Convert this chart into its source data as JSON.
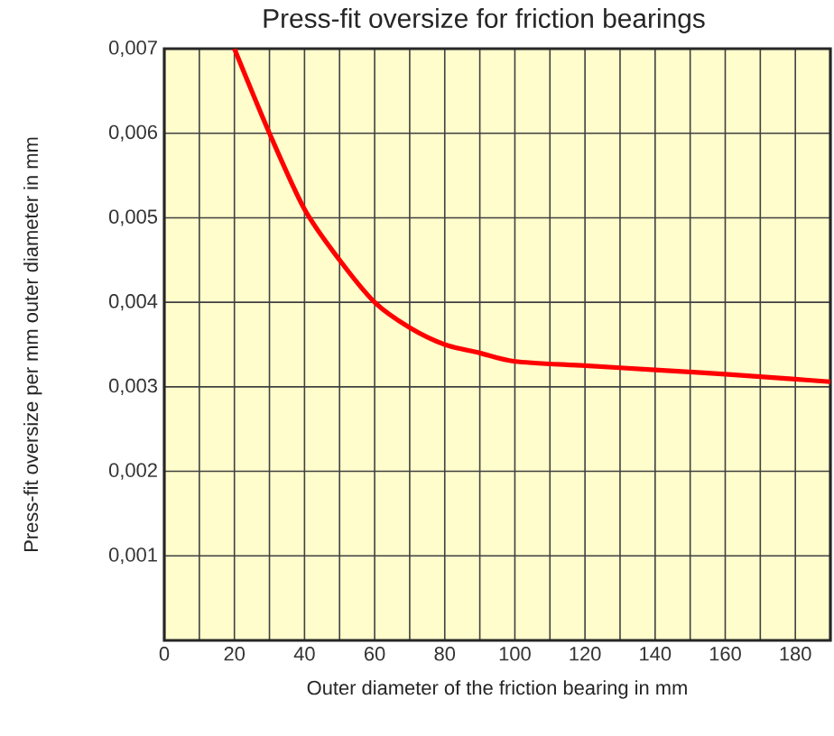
{
  "chart_data": {
    "type": "line",
    "title": "Press-fit oversize for friction bearings",
    "xlabel": "Outer diameter of the friction bearing in mm",
    "ylabel": "Press-fit oversize per mm outer diameter in mm",
    "x": [
      20,
      30,
      40,
      50,
      60,
      70,
      80,
      90,
      100,
      120,
      140,
      160,
      180,
      190
    ],
    "series": [
      {
        "color": "#ff0000",
        "values": [
          0.007,
          0.006,
          0.0051,
          0.0045,
          0.004,
          0.0037,
          0.0035,
          0.0034,
          0.0033,
          0.00325,
          0.0032,
          0.00315,
          0.00309,
          0.00306
        ]
      }
    ],
    "xlim": [
      0,
      190
    ],
    "ylim": [
      0,
      0.007
    ],
    "xticks": [
      0,
      {
        "value": 10,
        "label": null
      },
      20,
      {
        "value": 30,
        "label": null
      },
      40,
      {
        "value": 50,
        "label": null
      },
      60,
      {
        "value": 70,
        "label": null
      },
      80,
      {
        "value": 90,
        "label": null
      },
      100,
      {
        "value": 110,
        "label": null
      },
      120,
      {
        "value": 130,
        "label": null
      },
      140,
      {
        "value": 150,
        "label": null
      },
      160,
      {
        "value": 170,
        "label": null
      },
      180,
      {
        "value": 190,
        "label": null
      }
    ],
    "yticks": [
      {
        "value": 0.001,
        "label": "0,001"
      },
      {
        "value": 0.002,
        "label": "0,002"
      },
      {
        "value": 0.003,
        "label": "0,003"
      },
      {
        "value": 0.004,
        "label": "0,004"
      },
      {
        "value": 0.005,
        "label": "0,005"
      },
      {
        "value": 0.006,
        "label": "0,006"
      },
      {
        "value": 0.007,
        "label": "0,007"
      }
    ],
    "grid": true,
    "marker": "none",
    "line_style": "solid"
  }
}
